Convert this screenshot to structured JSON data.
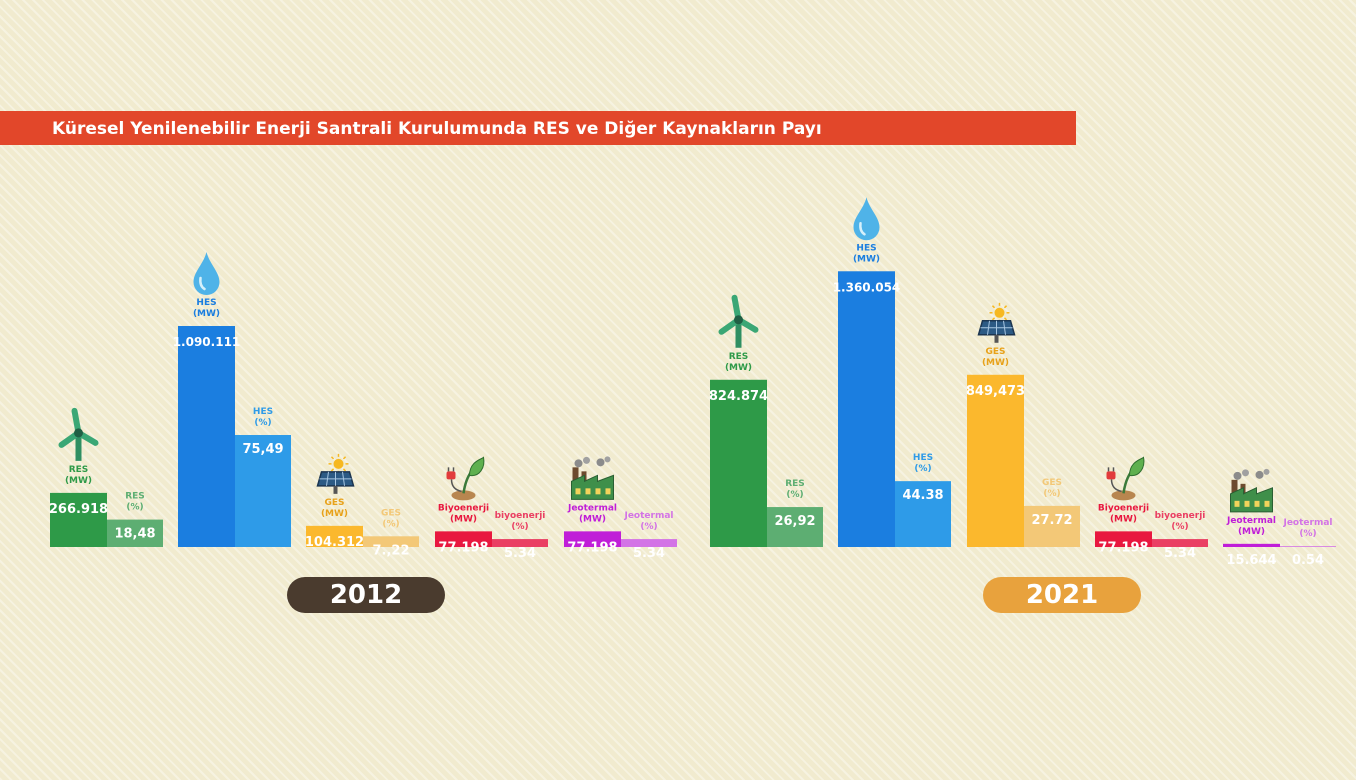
{
  "title": "Küresel Yenilenebilir Enerji Santrali Kurulumunda  RES ve Diğer Kaynakların Payı",
  "chart_data": [
    {
      "type": "bar",
      "year": "2012",
      "year_color": "#4a3b2e",
      "groups": [
        {
          "icon": "wind-turbine-icon",
          "color": "#2e9a48",
          "pct_color": "#5dae72",
          "mw_label": [
            "RES",
            "(MW)"
          ],
          "mw_value": 266918,
          "mw_text": "266.918",
          "pct_label": [
            "RES",
            "(%)"
          ],
          "pct_value": 18.48,
          "pct_text": "18,48"
        },
        {
          "icon": "water-drop-icon",
          "color": "#1b7ee0",
          "pct_color": "#2e9be8",
          "mw_label": [
            "HES",
            "(MW)"
          ],
          "mw_value": 1090111,
          "mw_text": "1.090.111",
          "pct_label": [
            "HES",
            "(%)"
          ],
          "pct_value": 75.49,
          "pct_text": "75,49"
        },
        {
          "icon": "solar-panel-icon",
          "color": "#fbb82d",
          "pct_color": "#f3c877",
          "mw_label": [
            "GES",
            "(MW)"
          ],
          "mw_value": 104312,
          "mw_text": "104.312",
          "pct_label": [
            "GES",
            "(%)"
          ],
          "pct_value": 7.22,
          "pct_text": "7.,22"
        },
        {
          "icon": "plant-plug-icon",
          "color": "#e8183f",
          "pct_color": "#ea3f63",
          "mw_label": [
            "Biyoenerji",
            "(MW)"
          ],
          "mw_value": 77198,
          "mw_text": "77.198",
          "pct_label": [
            "biyoenerji",
            "(%)"
          ],
          "pct_value": 5.34,
          "pct_text": "5.34"
        },
        {
          "icon": "factory-icon",
          "color": "#c01ed8",
          "pct_color": "#d373e6",
          "mw_label": [
            "Jeotermal",
            "(MW)"
          ],
          "mw_value": 77198,
          "mw_text": "77.198",
          "pct_label": [
            "Jeotermal",
            "(%)"
          ],
          "pct_value": 5.34,
          "pct_text": "5.34"
        }
      ]
    },
    {
      "type": "bar",
      "year": "2021",
      "year_color": "#e8a23d",
      "groups": [
        {
          "icon": "wind-turbine-icon",
          "color": "#2e9a48",
          "pct_color": "#5dae72",
          "mw_label": [
            "RES",
            "(MW)"
          ],
          "mw_value": 824874,
          "mw_text": "824.874",
          "pct_label": [
            "RES",
            "(%)"
          ],
          "pct_value": 26.92,
          "pct_text": "26,92"
        },
        {
          "icon": "water-drop-icon",
          "color": "#1b7ee0",
          "pct_color": "#2e9be8",
          "mw_label": [
            "HES",
            "(MW)"
          ],
          "mw_value": 1360054,
          "mw_text": "1.360.054",
          "pct_label": [
            "HES",
            "(%)"
          ],
          "pct_value": 44.38,
          "pct_text": "44.38"
        },
        {
          "icon": "solar-panel-icon",
          "color": "#fbb82d",
          "pct_color": "#f3c877",
          "mw_label": [
            "GES",
            "(MW)"
          ],
          "mw_value": 849473,
          "mw_text": "849,473",
          "pct_label": [
            "GES",
            "(%)"
          ],
          "pct_value": 27.72,
          "pct_text": "27.72"
        },
        {
          "icon": "plant-plug-icon",
          "color": "#e8183f",
          "pct_color": "#ea3f63",
          "mw_label": [
            "Biyoenerji",
            "(MW)"
          ],
          "mw_value": 77198,
          "mw_text": "77.198",
          "pct_label": [
            "biyoenerji",
            "(%)"
          ],
          "pct_value": 5.34,
          "pct_text": "5.34"
        },
        {
          "icon": "factory-icon",
          "color": "#c01ed8",
          "pct_color": "#d373e6",
          "mw_label": [
            "Jeotermal",
            "(MW)"
          ],
          "mw_value": 15644,
          "mw_text": "15.644",
          "pct_label": [
            "Jeotermal",
            "(%)"
          ],
          "pct_value": 0.54,
          "pct_text": "0.54"
        }
      ]
    }
  ]
}
